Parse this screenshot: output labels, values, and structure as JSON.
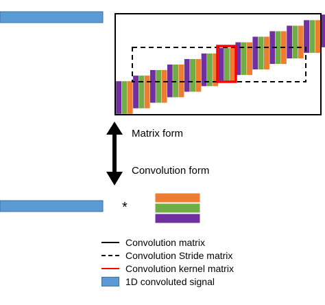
{
  "colors": {
    "signal": "#5b9bd5",
    "signal_border": "#41719c",
    "purple": "#7030a0",
    "green": "#70ad47",
    "orange": "#ed7d31",
    "kernel_highlight": "#ff0000",
    "frame": "#000000"
  },
  "labels": {
    "matrix_form": "Matrix form",
    "convolution_form": "Convolution form",
    "operator": "*"
  },
  "legend": [
    {
      "style": "solid",
      "color": "#000000",
      "label": "Convolution matrix"
    },
    {
      "style": "dashed",
      "color": "#000000",
      "label": "Convolution Stride matrix"
    },
    {
      "style": "solid",
      "color": "#ff0000",
      "label": "Convolution kernel matrix"
    },
    {
      "style": "fill",
      "color": "#5b9bd5",
      "label": "1D convoluted signal"
    }
  ],
  "matrix": {
    "kernel_bars": [
      "purple",
      "green",
      "orange"
    ],
    "kernel_count": 13
  },
  "kernel_stack": [
    "orange",
    "green",
    "purple"
  ]
}
